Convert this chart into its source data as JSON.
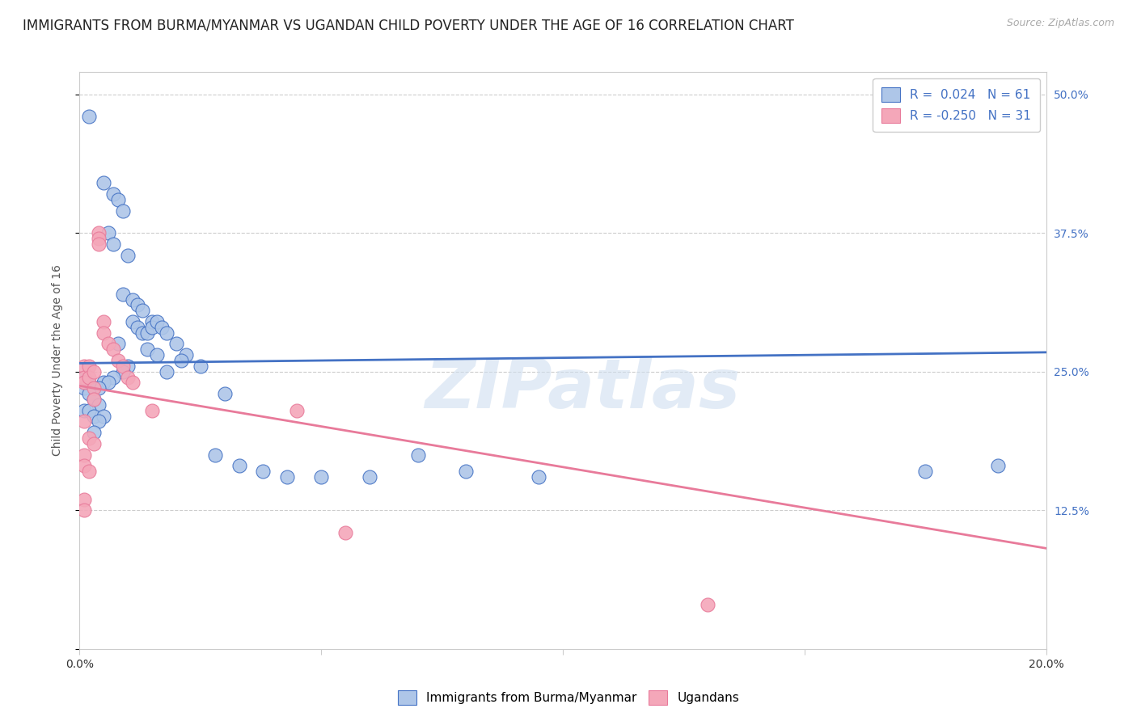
{
  "title": "IMMIGRANTS FROM BURMA/MYANMAR VS UGANDAN CHILD POVERTY UNDER THE AGE OF 16 CORRELATION CHART",
  "source": "Source: ZipAtlas.com",
  "ylabel": "Child Poverty Under the Age of 16",
  "xlim": [
    0.0,
    0.2
  ],
  "ylim": [
    0.0,
    0.52
  ],
  "xtick_vals": [
    0.0,
    0.05,
    0.1,
    0.15,
    0.2
  ],
  "xticklabels": [
    "0.0%",
    "",
    "",
    "",
    "20.0%"
  ],
  "ytick_right_labels": [
    "50.0%",
    "37.5%",
    "25.0%",
    "12.5%",
    ""
  ],
  "ytick_right_values": [
    0.5,
    0.375,
    0.25,
    0.125,
    0.0
  ],
  "blue_R": 0.024,
  "blue_N": 61,
  "pink_R": -0.25,
  "pink_N": 31,
  "blue_scatter": [
    [
      0.002,
      0.48
    ],
    [
      0.005,
      0.42
    ],
    [
      0.007,
      0.41
    ],
    [
      0.008,
      0.405
    ],
    [
      0.009,
      0.395
    ],
    [
      0.006,
      0.375
    ],
    [
      0.007,
      0.365
    ],
    [
      0.01,
      0.355
    ],
    [
      0.009,
      0.32
    ],
    [
      0.011,
      0.315
    ],
    [
      0.012,
      0.31
    ],
    [
      0.013,
      0.305
    ],
    [
      0.011,
      0.295
    ],
    [
      0.012,
      0.29
    ],
    [
      0.013,
      0.285
    ],
    [
      0.014,
      0.285
    ],
    [
      0.015,
      0.295
    ],
    [
      0.015,
      0.29
    ],
    [
      0.016,
      0.295
    ],
    [
      0.017,
      0.29
    ],
    [
      0.018,
      0.285
    ],
    [
      0.008,
      0.275
    ],
    [
      0.014,
      0.27
    ],
    [
      0.016,
      0.265
    ],
    [
      0.02,
      0.275
    ],
    [
      0.022,
      0.265
    ],
    [
      0.021,
      0.26
    ],
    [
      0.01,
      0.255
    ],
    [
      0.009,
      0.25
    ],
    [
      0.018,
      0.25
    ],
    [
      0.025,
      0.255
    ],
    [
      0.007,
      0.245
    ],
    [
      0.005,
      0.24
    ],
    [
      0.006,
      0.24
    ],
    [
      0.003,
      0.235
    ],
    [
      0.004,
      0.235
    ],
    [
      0.002,
      0.24
    ],
    [
      0.001,
      0.245
    ],
    [
      0.001,
      0.24
    ],
    [
      0.001,
      0.235
    ],
    [
      0.002,
      0.23
    ],
    [
      0.003,
      0.225
    ],
    [
      0.004,
      0.22
    ],
    [
      0.001,
      0.215
    ],
    [
      0.002,
      0.215
    ],
    [
      0.003,
      0.21
    ],
    [
      0.005,
      0.21
    ],
    [
      0.004,
      0.205
    ],
    [
      0.003,
      0.195
    ],
    [
      0.03,
      0.23
    ],
    [
      0.028,
      0.175
    ],
    [
      0.033,
      0.165
    ],
    [
      0.038,
      0.16
    ],
    [
      0.043,
      0.155
    ],
    [
      0.05,
      0.155
    ],
    [
      0.06,
      0.155
    ],
    [
      0.07,
      0.175
    ],
    [
      0.08,
      0.16
    ],
    [
      0.095,
      0.155
    ],
    [
      0.175,
      0.16
    ],
    [
      0.19,
      0.165
    ]
  ],
  "pink_scatter": [
    [
      0.001,
      0.255
    ],
    [
      0.001,
      0.245
    ],
    [
      0.001,
      0.24
    ],
    [
      0.002,
      0.255
    ],
    [
      0.002,
      0.245
    ],
    [
      0.003,
      0.25
    ],
    [
      0.003,
      0.235
    ],
    [
      0.003,
      0.225
    ],
    [
      0.004,
      0.375
    ],
    [
      0.004,
      0.37
    ],
    [
      0.004,
      0.365
    ],
    [
      0.005,
      0.295
    ],
    [
      0.005,
      0.285
    ],
    [
      0.006,
      0.275
    ],
    [
      0.007,
      0.27
    ],
    [
      0.008,
      0.26
    ],
    [
      0.009,
      0.255
    ],
    [
      0.01,
      0.245
    ],
    [
      0.011,
      0.24
    ],
    [
      0.001,
      0.205
    ],
    [
      0.002,
      0.19
    ],
    [
      0.003,
      0.185
    ],
    [
      0.001,
      0.175
    ],
    [
      0.001,
      0.165
    ],
    [
      0.002,
      0.16
    ],
    [
      0.001,
      0.135
    ],
    [
      0.001,
      0.125
    ],
    [
      0.015,
      0.215
    ],
    [
      0.045,
      0.215
    ],
    [
      0.055,
      0.105
    ],
    [
      0.13,
      0.04
    ]
  ],
  "watermark": "ZIPatlas",
  "blue_line_color": "#4472c4",
  "pink_line_color": "#e87a9a",
  "scatter_blue_color": "#aec6e8",
  "scatter_pink_color": "#f4a7b9",
  "grid_color": "#cccccc",
  "bg_color": "#ffffff",
  "title_fontsize": 12,
  "axis_fontsize": 10,
  "tick_fontsize": 10
}
